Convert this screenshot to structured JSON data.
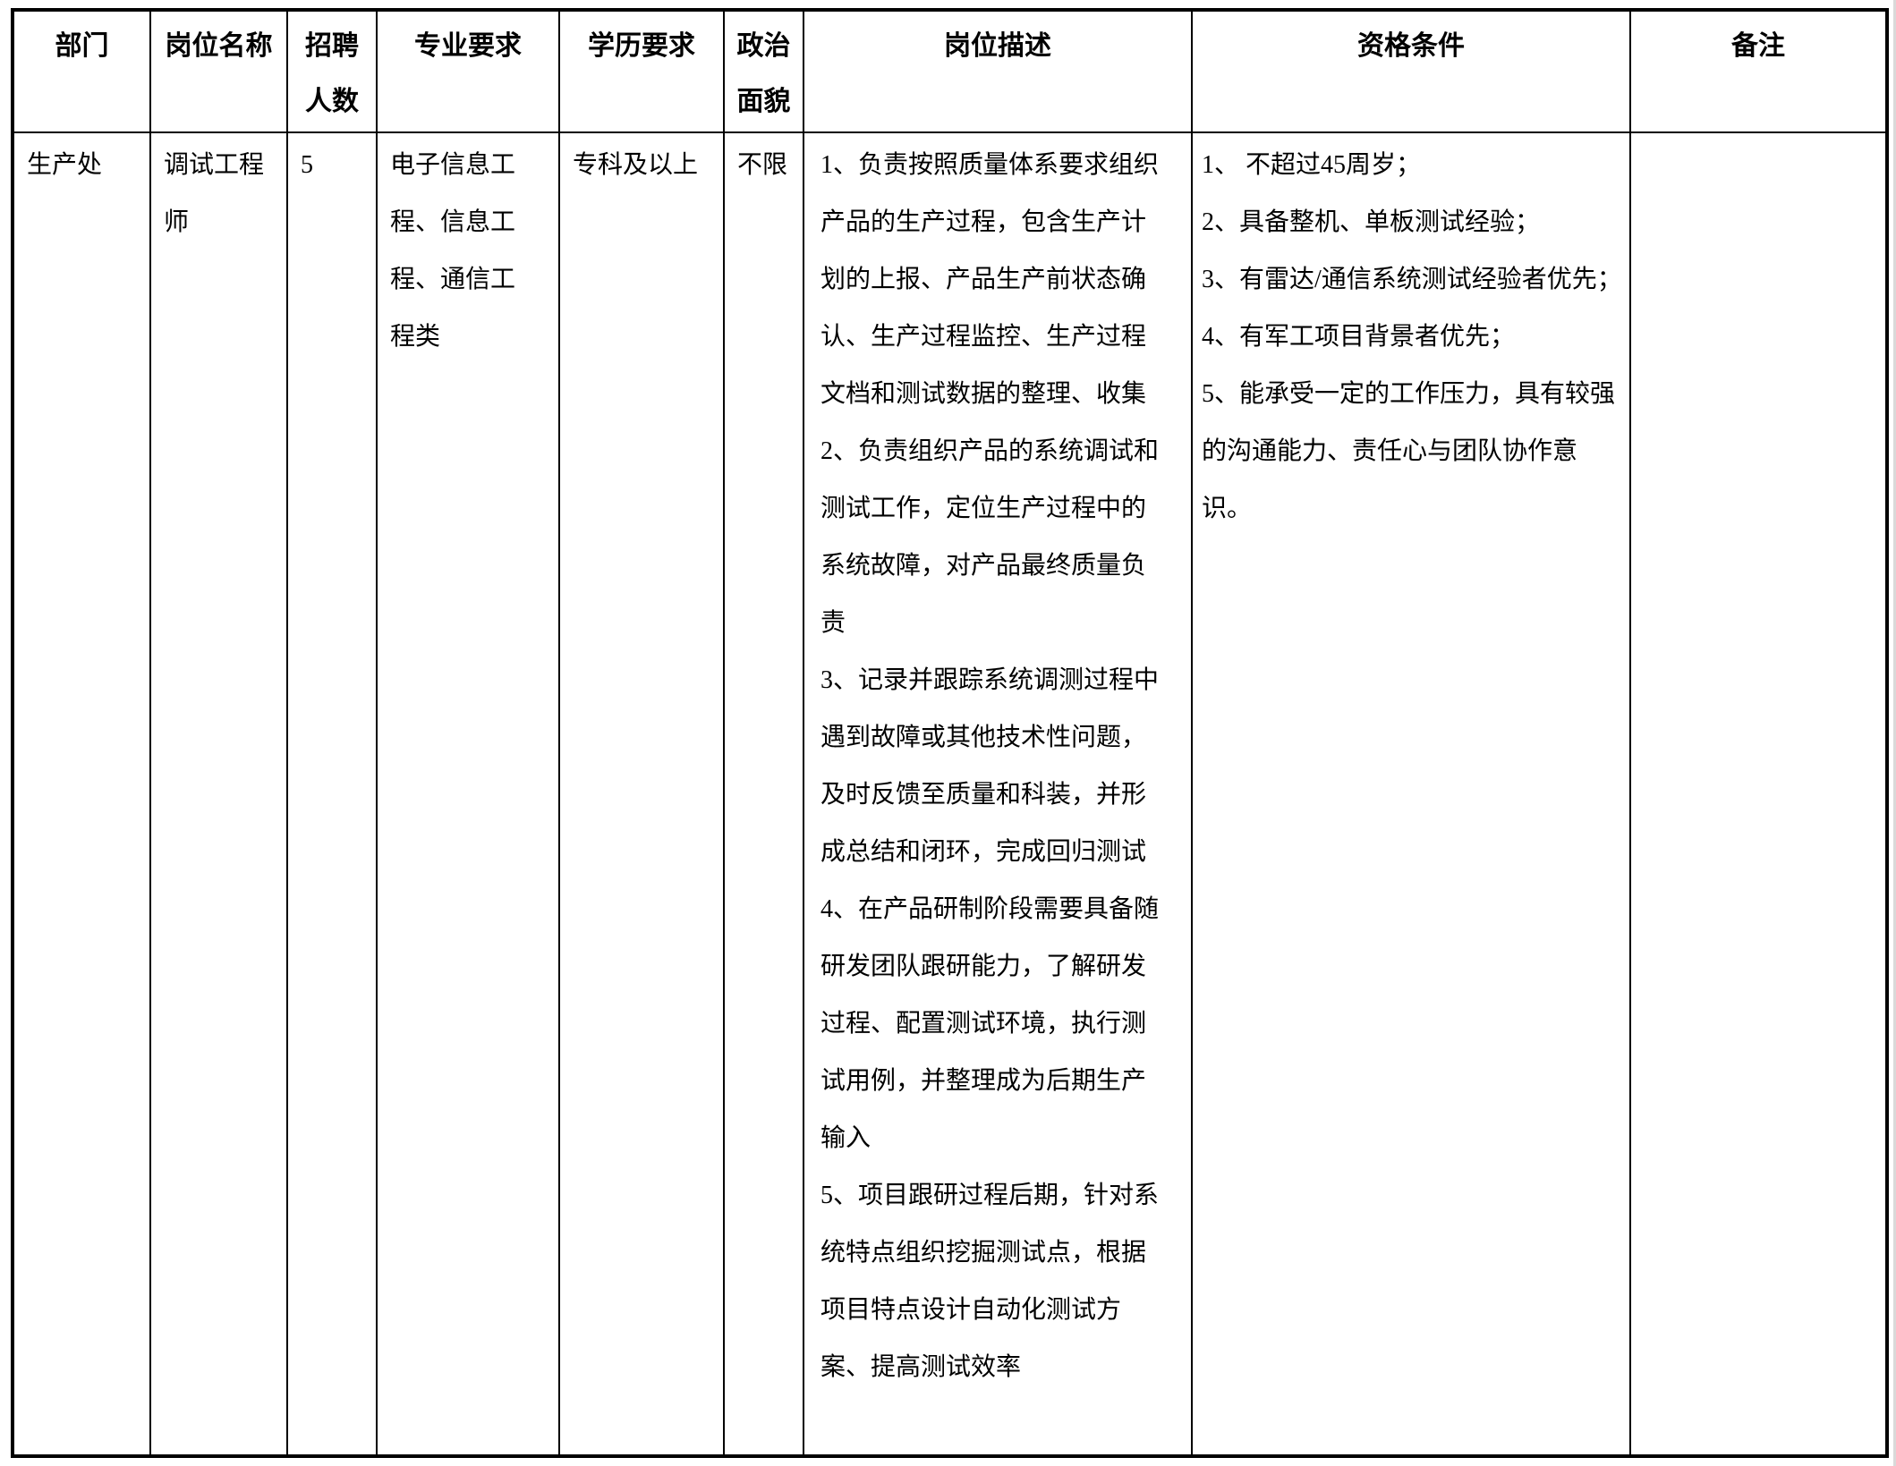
{
  "table": {
    "columns": [
      {
        "label": "部门"
      },
      {
        "label": "岗位名称"
      },
      {
        "label": "招聘\n人数"
      },
      {
        "label": "专业要求"
      },
      {
        "label": "学历要求"
      },
      {
        "label": "政治\n面貌"
      },
      {
        "label": "岗位描述"
      },
      {
        "label": "资格条件"
      },
      {
        "label": "备注"
      }
    ],
    "rows": [
      {
        "department": "生产处",
        "position": "调试工程\n师",
        "headcount": "5",
        "major": "电子信息工\n程、信息工\n程、通信工\n程类",
        "education": "专科及以上",
        "political": "不限",
        "description": "1、负责按照质量体系要求组织\n产品的生产过程，包含生产计\n划的上报、产品生产前状态确\n认、生产过程监控、生产过程\n文档和测试数据的整理、收集\n2、负责组织产品的系统调试和\n测试工作，定位生产过程中的\n系统故障，对产品最终质量负\n责\n3、记录并跟踪系统调测过程中\n遇到故障或其他技术性问题，\n及时反馈至质量和科装，并形\n成总结和闭环，完成回归测试\n4、在产品研制阶段需要具备随\n研发团队跟研能力，了解研发\n过程、配置测试环境，执行测\n试用例，并整理成为后期生产\n输入\n5、项目跟研过程后期，针对系\n统特点组织挖掘测试点，根据\n项目特点设计自动化测试方\n案、提高测试效率",
        "qualifications": "1、 不超过45周岁；\n2、具备整机、单板测试经验；\n3、有雷达/通信系统测试经验者优先；\n4、有军工项目背景者优先；\n5、能承受一定的工作压力，具有较强\n的沟通能力、责任心与团队协作意\n识。",
        "remark": ""
      }
    ],
    "text_color": "#000000",
    "border_color": "#000000"
  }
}
